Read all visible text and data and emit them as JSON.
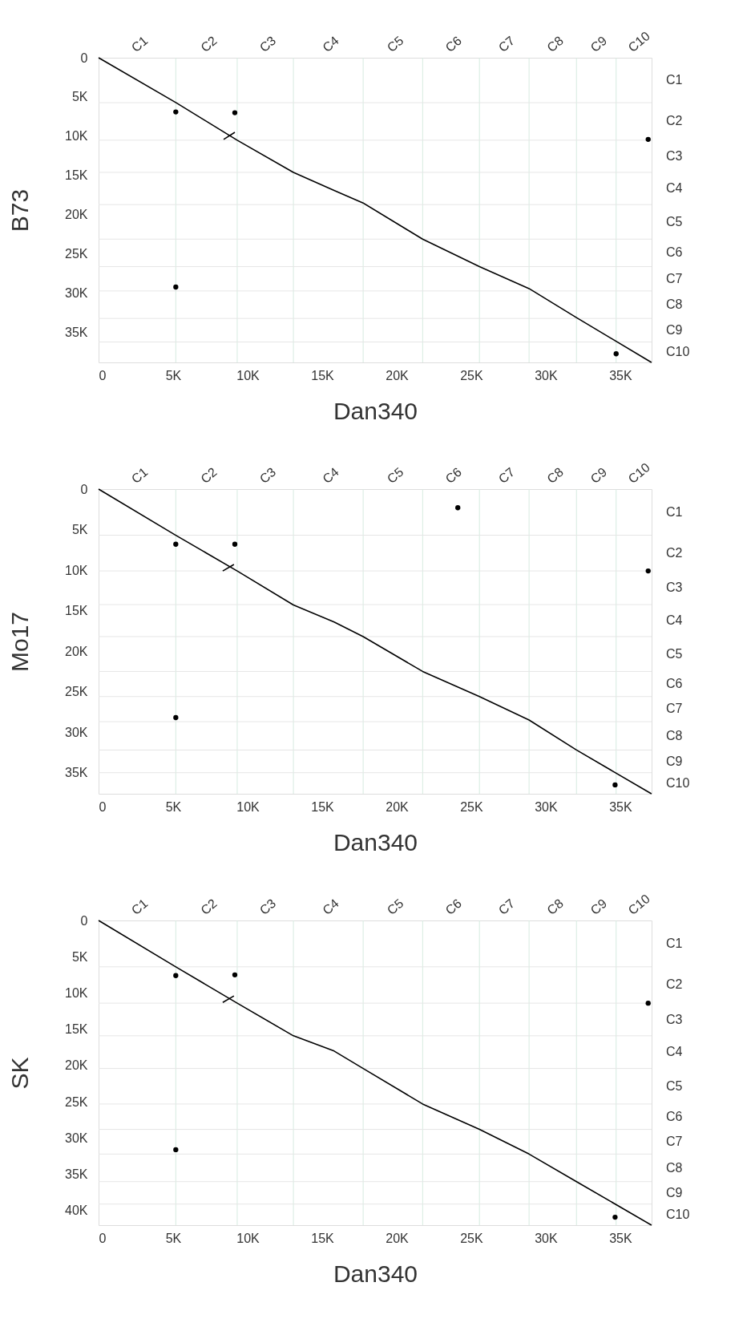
{
  "chart_data": [
    {
      "type": "line",
      "xlabel": "Dan340",
      "ylabel": "B73",
      "xlim": [
        0,
        37100
      ],
      "ylim": [
        38800,
        0
      ],
      "xticks": [
        0,
        {
          "value": 5000,
          "label": "5K"
        },
        {
          "value": 10000,
          "label": "10K"
        },
        {
          "value": 15000,
          "label": "15K"
        },
        {
          "value": 20000,
          "label": "20K"
        },
        {
          "value": 25000,
          "label": "25K"
        },
        {
          "value": 30000,
          "label": "30K"
        },
        {
          "value": 35000,
          "label": "35K"
        }
      ],
      "yticks": [
        0,
        {
          "value": 5000,
          "label": "5K"
        },
        {
          "value": 10000,
          "label": "10K"
        },
        {
          "value": 15000,
          "label": "15K"
        },
        {
          "value": 20000,
          "label": "20K"
        },
        {
          "value": 25000,
          "label": "25K"
        },
        {
          "value": 30000,
          "label": "30K"
        },
        {
          "value": 35000,
          "label": "35K"
        }
      ],
      "annotations": [
        "C1",
        "C2",
        "C3",
        "C4",
        "C5",
        "C6",
        "C7",
        "C8",
        "C9",
        "C10",
        "C1",
        "C2",
        "C3",
        "C4",
        "C5",
        "C6",
        "C7",
        "C8",
        "C9",
        "C10"
      ],
      "ref_lines": [
        {
          "axis": "x",
          "value": 5180,
          "color": "#d6ebe0"
        },
        {
          "axis": "x",
          "value": 9300,
          "color": "#d6ebe0"
        },
        {
          "axis": "x",
          "value": 13070,
          "color": "#d6ebe0"
        },
        {
          "axis": "x",
          "value": 17750,
          "color": "#d6ebe0"
        },
        {
          "axis": "x",
          "value": 21740,
          "color": "#d6ebe0"
        },
        {
          "axis": "x",
          "value": 25550,
          "color": "#d6ebe0"
        },
        {
          "axis": "x",
          "value": 28880,
          "color": "#d6ebe0"
        },
        {
          "axis": "x",
          "value": 32060,
          "color": "#d6ebe0"
        },
        {
          "axis": "x",
          "value": 34720,
          "color": "#d6ebe0"
        },
        {
          "axis": "y",
          "value": 5720,
          "color": "#e6e6e6"
        },
        {
          "axis": "y",
          "value": 10500,
          "color": "#e6e6e6"
        },
        {
          "axis": "y",
          "value": 14600,
          "color": "#e6e6e6"
        },
        {
          "axis": "y",
          "value": 18700,
          "color": "#e6e6e6"
        },
        {
          "axis": "y",
          "value": 23100,
          "color": "#e6e6e6"
        },
        {
          "axis": "y",
          "value": 26600,
          "color": "#e6e6e6"
        },
        {
          "axis": "y",
          "value": 29700,
          "color": "#e6e6e6"
        },
        {
          "axis": "y",
          "value": 33200,
          "color": "#e6e6e6"
        },
        {
          "axis": "y",
          "value": 36200,
          "color": "#e6e6e6"
        }
      ],
      "series": [
        {
          "color": "#000000",
          "x": [
            0,
            5180,
            9300,
            13070,
            15800,
            17750,
            21740,
            25550,
            28880,
            32060,
            37090
          ],
          "values": [
            0,
            5700,
            10500,
            14600,
            16900,
            18500,
            23100,
            26600,
            29400,
            33100,
            38800
          ]
        },
        {
          "color": "#000000",
          "x": [
            8390,
            9140
          ],
          "values": [
            10400,
            9500
          ]
        },
        {
          "type": "scatter",
          "marker": "circle",
          "color": "#000000",
          "x": [
            5180,
            9140,
            36870,
            5180,
            34720
          ],
          "values": [
            6900,
            7000,
            10400,
            29200,
            37700
          ]
        }
      ],
      "marker": "none",
      "line_style": "solid"
    },
    {
      "type": "line",
      "xlabel": "Dan340",
      "ylabel": "Mo17",
      "xlim": [
        0,
        37100
      ],
      "ylim": [
        37600,
        0
      ],
      "xticks": [
        0,
        {
          "value": 5000,
          "label": "5K"
        },
        {
          "value": 10000,
          "label": "10K"
        },
        {
          "value": 15000,
          "label": "15K"
        },
        {
          "value": 20000,
          "label": "20K"
        },
        {
          "value": 25000,
          "label": "25K"
        },
        {
          "value": 30000,
          "label": "30K"
        },
        {
          "value": 35000,
          "label": "35K"
        }
      ],
      "yticks": [
        0,
        {
          "value": 5000,
          "label": "5K"
        },
        {
          "value": 10000,
          "label": "10K"
        },
        {
          "value": 15000,
          "label": "15K"
        },
        {
          "value": 20000,
          "label": "20K"
        },
        {
          "value": 25000,
          "label": "25K"
        },
        {
          "value": 30000,
          "label": "30K"
        },
        {
          "value": 35000,
          "label": "35K"
        }
      ],
      "annotations": [
        "C1",
        "C2",
        "C3",
        "C4",
        "C5",
        "C6",
        "C7",
        "C8",
        "C9",
        "C10",
        "C1",
        "C2",
        "C3",
        "C4",
        "C5",
        "C6",
        "C7",
        "C8",
        "C9",
        "C10"
      ],
      "ref_lines": [
        {
          "axis": "x",
          "value": 5180,
          "color": "#d6ebe0"
        },
        {
          "axis": "x",
          "value": 9300,
          "color": "#d6ebe0"
        },
        {
          "axis": "x",
          "value": 13070,
          "color": "#d6ebe0"
        },
        {
          "axis": "x",
          "value": 17750,
          "color": "#d6ebe0"
        },
        {
          "axis": "x",
          "value": 21740,
          "color": "#d6ebe0"
        },
        {
          "axis": "x",
          "value": 25550,
          "color": "#d6ebe0"
        },
        {
          "axis": "x",
          "value": 28880,
          "color": "#d6ebe0"
        },
        {
          "axis": "x",
          "value": 32060,
          "color": "#d6ebe0"
        },
        {
          "axis": "x",
          "value": 34720,
          "color": "#d6ebe0"
        },
        {
          "axis": "y",
          "value": 5690,
          "color": "#e6e6e6"
        },
        {
          "axis": "y",
          "value": 10100,
          "color": "#e6e6e6"
        },
        {
          "axis": "y",
          "value": 14250,
          "color": "#e6e6e6"
        },
        {
          "axis": "y",
          "value": 18200,
          "color": "#e6e6e6"
        },
        {
          "axis": "y",
          "value": 22500,
          "color": "#e6e6e6"
        },
        {
          "axis": "y",
          "value": 25600,
          "color": "#e6e6e6"
        },
        {
          "axis": "y",
          "value": 28700,
          "color": "#e6e6e6"
        },
        {
          "axis": "y",
          "value": 32200,
          "color": "#e6e6e6"
        },
        {
          "axis": "y",
          "value": 35000,
          "color": "#e6e6e6"
        }
      ],
      "series": [
        {
          "color": "#000000",
          "x": [
            0,
            5180,
            9300,
            13070,
            15800,
            17750,
            21740,
            25550,
            28880,
            32060,
            37090
          ],
          "values": [
            0,
            5700,
            10100,
            14300,
            16400,
            18200,
            22500,
            25600,
            28500,
            32200,
            37600
          ]
        },
        {
          "color": "#000000",
          "x": [
            8330,
            9080
          ],
          "values": [
            10100,
            9300
          ]
        },
        {
          "type": "scatter",
          "marker": "circle",
          "color": "#000000",
          "x": [
            24100,
            5180,
            9140,
            36870,
            5180,
            34650
          ],
          "values": [
            2300,
            6800,
            6800,
            10100,
            28200,
            36500
          ]
        }
      ],
      "marker": "none",
      "line_style": "solid"
    },
    {
      "type": "line",
      "xlabel": "Dan340",
      "ylabel": "SK",
      "xlim": [
        0,
        37100
      ],
      "ylim": [
        42000,
        0
      ],
      "xticks": [
        0,
        {
          "value": 5000,
          "label": "5K"
        },
        {
          "value": 10000,
          "label": "10K"
        },
        {
          "value": 15000,
          "label": "15K"
        },
        {
          "value": 20000,
          "label": "20K"
        },
        {
          "value": 25000,
          "label": "25K"
        },
        {
          "value": 30000,
          "label": "30K"
        },
        {
          "value": 35000,
          "label": "35K"
        }
      ],
      "yticks": [
        0,
        {
          "value": 5000,
          "label": "5K"
        },
        {
          "value": 10000,
          "label": "10K"
        },
        {
          "value": 15000,
          "label": "15K"
        },
        {
          "value": 20000,
          "label": "20K"
        },
        {
          "value": 25000,
          "label": "25K"
        },
        {
          "value": 30000,
          "label": "30K"
        },
        {
          "value": 35000,
          "label": "35K"
        },
        {
          "value": 40000,
          "label": "40K"
        }
      ],
      "annotations": [
        "C1",
        "C2",
        "C3",
        "C4",
        "C5",
        "C6",
        "C7",
        "C8",
        "C9",
        "C10",
        "C1",
        "C2",
        "C3",
        "C4",
        "C5",
        "C6",
        "C7",
        "C8",
        "C9",
        "C10"
      ],
      "ref_lines": [
        {
          "axis": "x",
          "value": 5180,
          "color": "#d6ebe0"
        },
        {
          "axis": "x",
          "value": 9300,
          "color": "#d6ebe0"
        },
        {
          "axis": "x",
          "value": 13070,
          "color": "#d6ebe0"
        },
        {
          "axis": "x",
          "value": 17750,
          "color": "#d6ebe0"
        },
        {
          "axis": "x",
          "value": 21740,
          "color": "#d6ebe0"
        },
        {
          "axis": "x",
          "value": 25550,
          "color": "#d6ebe0"
        },
        {
          "axis": "x",
          "value": 28880,
          "color": "#d6ebe0"
        },
        {
          "axis": "x",
          "value": 32060,
          "color": "#d6ebe0"
        },
        {
          "axis": "x",
          "value": 34720,
          "color": "#d6ebe0"
        },
        {
          "axis": "y",
          "value": 6390,
          "color": "#e6e6e6"
        },
        {
          "axis": "y",
          "value": 11400,
          "color": "#e6e6e6"
        },
        {
          "axis": "y",
          "value": 15900,
          "color": "#e6e6e6"
        },
        {
          "axis": "y",
          "value": 20400,
          "color": "#e6e6e6"
        },
        {
          "axis": "y",
          "value": 25300,
          "color": "#e6e6e6"
        },
        {
          "axis": "y",
          "value": 28800,
          "color": "#e6e6e6"
        },
        {
          "axis": "y",
          "value": 32200,
          "color": "#e6e6e6"
        },
        {
          "axis": "y",
          "value": 36000,
          "color": "#e6e6e6"
        },
        {
          "axis": "y",
          "value": 39100,
          "color": "#e6e6e6"
        }
      ],
      "series": [
        {
          "color": "#000000",
          "x": [
            0,
            5180,
            9300,
            13070,
            15800,
            17750,
            21740,
            25550,
            28880,
            32060,
            37090
          ],
          "values": [
            0,
            6400,
            11400,
            15900,
            18000,
            20400,
            25300,
            28800,
            32200,
            36000,
            42000
          ]
        },
        {
          "color": "#000000",
          "x": [
            8330,
            9080
          ],
          "values": [
            11300,
            10400
          ]
        },
        {
          "type": "scatter",
          "marker": "circle",
          "color": "#000000",
          "x": [
            5180,
            9140,
            36870,
            5180,
            34650
          ],
          "values": [
            7600,
            7500,
            11400,
            31600,
            40900
          ]
        }
      ],
      "marker": "none",
      "line_style": "solid"
    }
  ]
}
